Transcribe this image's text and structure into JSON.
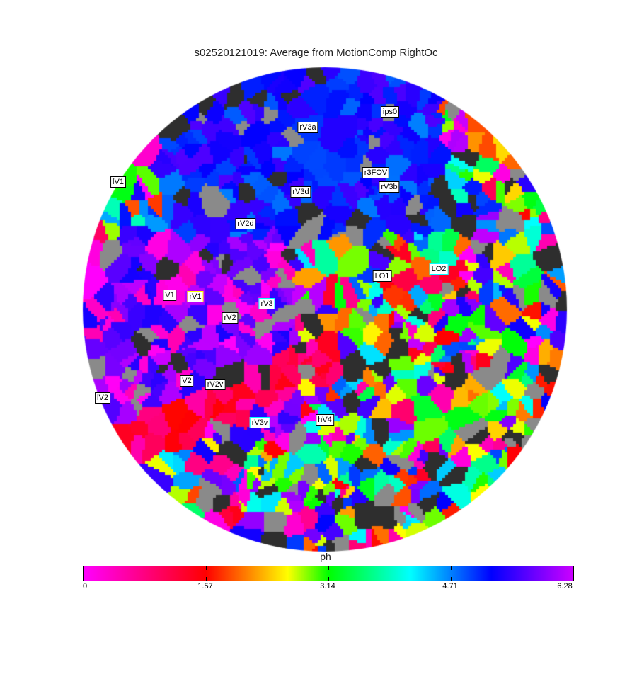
{
  "title": "s02520121019: Average from MotionComp RightOc",
  "rois": [
    {
      "label": "lV1",
      "style": "black"
    },
    {
      "label": "rV3a",
      "style": "black"
    },
    {
      "label": "ips0",
      "style": "black"
    },
    {
      "label": "r3FOV",
      "style": "black"
    },
    {
      "label": "rV3b",
      "style": "black"
    },
    {
      "label": "rV3d",
      "style": "black"
    },
    {
      "label": "rV2d",
      "style": "black"
    },
    {
      "label": "LO1",
      "style": "black"
    },
    {
      "label": "LO2",
      "style": "cyan"
    },
    {
      "label": "V1",
      "style": "black"
    },
    {
      "label": "rV1",
      "style": "yellow"
    },
    {
      "label": "rV3",
      "style": "cyan"
    },
    {
      "label": "rV2",
      "style": "black"
    },
    {
      "label": "V2",
      "style": "black"
    },
    {
      "label": "rV2v",
      "style": "black"
    },
    {
      "label": "lV2",
      "style": "black"
    },
    {
      "label": "rV3v",
      "style": "cyan"
    },
    {
      "label": "hV4",
      "style": "black"
    }
  ],
  "colorbar": {
    "label": "ph",
    "min": 0,
    "max": 6.28,
    "ticks": [
      "0",
      "1.57",
      "3.14",
      "4.71",
      "6.28"
    ],
    "colormap": [
      "#ff00ff",
      "#ff0000",
      "#ffff00",
      "#00ff00",
      "#00ffff",
      "#0000ff",
      "#cc00ff"
    ]
  }
}
